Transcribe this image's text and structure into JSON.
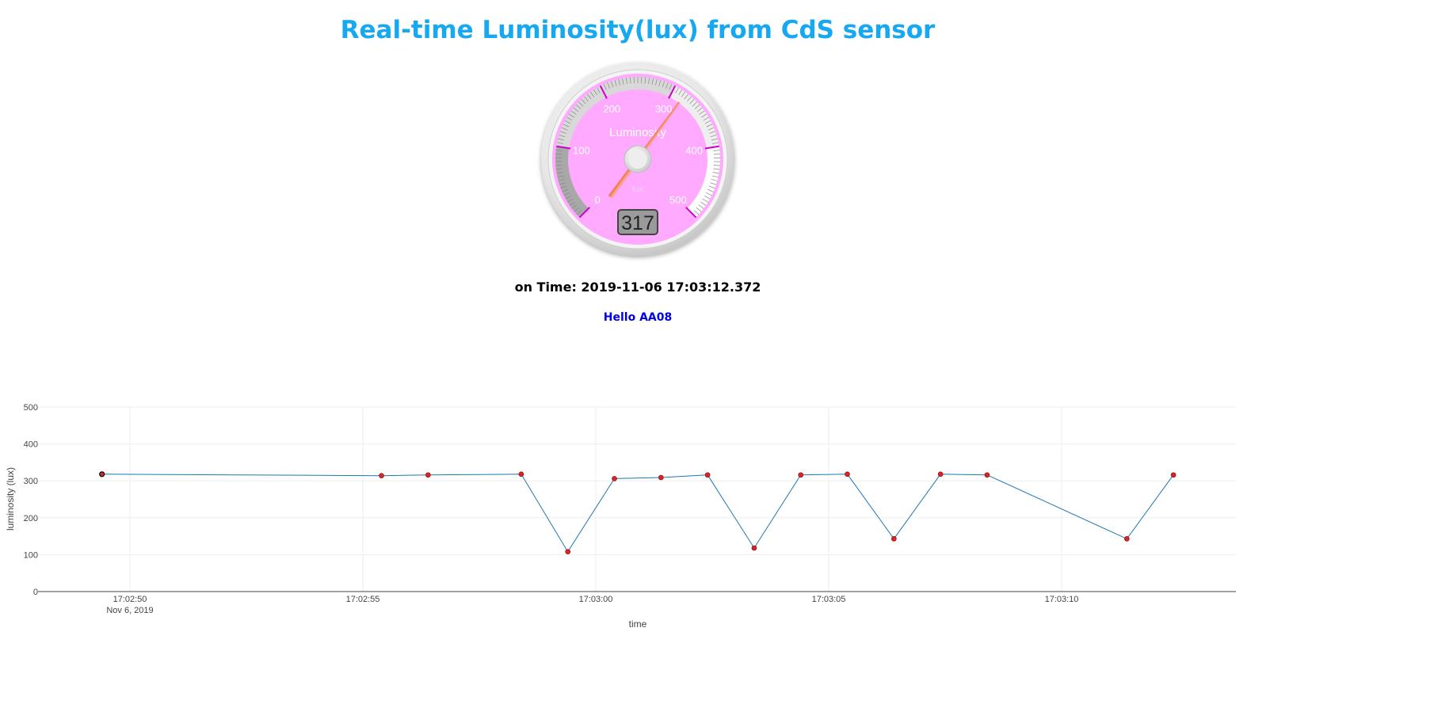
{
  "page": {
    "title": "Real-time Luminosity(lux) from CdS sensor",
    "on_time_label": "on Time: 2019-11-06 17:03:12.372",
    "greeting": "Hello AA08"
  },
  "gauge": {
    "title": "Luminosity",
    "units": "lux",
    "value": 317,
    "display": "317",
    "min": 0,
    "max": 500,
    "major_ticks": [
      "0",
      "100",
      "200",
      "300",
      "400",
      "500"
    ],
    "highlights": [
      {
        "from": 0,
        "to": 100,
        "color": "#a8a8a8"
      },
      {
        "from": 100,
        "to": 300,
        "color": "#d8d8d8"
      },
      {
        "from": 300,
        "to": 400,
        "color": "#eeeeee"
      },
      {
        "from": 400,
        "to": 500,
        "color": "#ffffff"
      }
    ],
    "colors": {
      "plate": "#ffaaff",
      "major_tick": "#cc00cc",
      "needle": "#f08060",
      "label": "#ffffff"
    }
  },
  "chart_data": {
    "type": "line",
    "xlabel": "time",
    "ylabel": "luminosity (lux)",
    "ylim": [
      0,
      500
    ],
    "yticks": [
      "0",
      "100",
      "200",
      "300",
      "400",
      "500"
    ],
    "xticks": [
      "17:02:50",
      "17:02:55",
      "17:03:00",
      "17:03:05",
      "17:03:10"
    ],
    "xtick_sublabel": "Nov 6, 2019",
    "grid": true,
    "series": [
      {
        "line_color": "#1f77b4",
        "marker_color": "#d62728",
        "points": [
          {
            "x": "17:02:49.4",
            "y": 318
          },
          {
            "x": "17:02:55.4",
            "y": 314
          },
          {
            "x": "17:02:56.4",
            "y": 316
          },
          {
            "x": "17:02:58.4",
            "y": 318
          },
          {
            "x": "17:02:59.4",
            "y": 108
          },
          {
            "x": "17:03:00.4",
            "y": 306
          },
          {
            "x": "17:03:01.4",
            "y": 309
          },
          {
            "x": "17:03:02.4",
            "y": 316
          },
          {
            "x": "17:03:03.4",
            "y": 118
          },
          {
            "x": "17:03:04.4",
            "y": 316
          },
          {
            "x": "17:03:05.4",
            "y": 318
          },
          {
            "x": "17:03:06.4",
            "y": 143
          },
          {
            "x": "17:03:07.4",
            "y": 318
          },
          {
            "x": "17:03:08.4",
            "y": 316
          },
          {
            "x": "17:03:11.4",
            "y": 143
          },
          {
            "x": "17:03:12.4",
            "y": 316
          }
        ]
      }
    ]
  }
}
